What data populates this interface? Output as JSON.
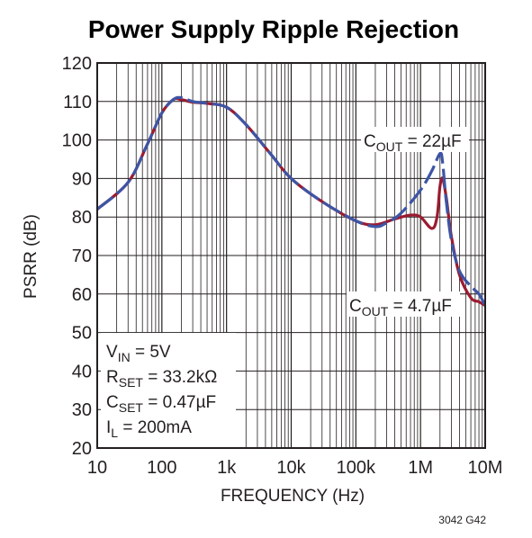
{
  "chart_data": {
    "type": "line",
    "title": "Power Supply Ripple Rejection",
    "xlabel": "FREQUENCY (Hz)",
    "ylabel": "PSRR (dB)",
    "xscale": "log",
    "xlim": [
      10,
      10000000
    ],
    "ylim": [
      20,
      120
    ],
    "grid": true,
    "x_ticks": [
      {
        "value": 10,
        "label": "10"
      },
      {
        "value": 100,
        "label": "100"
      },
      {
        "value": 1000,
        "label": "1k"
      },
      {
        "value": 10000,
        "label": "10k"
      },
      {
        "value": 100000,
        "label": "100k"
      },
      {
        "value": 1000000,
        "label": "1M"
      },
      {
        "value": 10000000,
        "label": "10M"
      }
    ],
    "y_ticks": [
      20,
      30,
      40,
      50,
      60,
      70,
      80,
      90,
      100,
      110,
      120
    ],
    "series": [
      {
        "name": "COUT = 4.7µF",
        "color": "#9b1b30",
        "style": "solid",
        "x": [
          10,
          30,
          60,
          100,
          150,
          200,
          300,
          500,
          1000,
          2000,
          5000,
          10000,
          30000,
          100000,
          200000,
          400000,
          700000,
          1000000,
          1500000,
          1800000,
          2000000,
          2200000,
          2500000,
          3000000,
          4000000,
          6000000,
          8000000,
          10000000
        ],
        "y": [
          82,
          89,
          99,
          107,
          110.5,
          110.5,
          109.8,
          109.5,
          108.5,
          104,
          96,
          90,
          84,
          79,
          78,
          79.5,
          80.5,
          80,
          77,
          80,
          88,
          90,
          85,
          75,
          65,
          59,
          58,
          57
        ]
      },
      {
        "name": "COUT = 22µF",
        "color": "#3d55a5",
        "style": "dashed",
        "x": [
          10,
          30,
          60,
          100,
          150,
          200,
          300,
          500,
          1000,
          2000,
          5000,
          10000,
          30000,
          100000,
          200000,
          300000,
          500000,
          1000000,
          1500000,
          2000000,
          2200000,
          2500000,
          3000000,
          4000000,
          6000000,
          8000000,
          10000000
        ],
        "y": [
          82,
          89,
          99,
          107,
          110.5,
          111,
          110,
          109.5,
          108.5,
          104,
          96,
          90,
          84,
          79,
          77.5,
          78.5,
          81,
          87,
          92,
          96.5,
          94,
          84,
          74,
          66,
          62,
          60,
          57
        ]
      }
    ],
    "annotations": [
      {
        "label": "COUT = 22µF",
        "x": 3000000,
        "y": 101
      },
      {
        "label": "COUT = 4.7µF",
        "x": 700000,
        "y": 58
      }
    ],
    "conditions": {
      "vin": "VIN = 5V",
      "rset": "RSET = 33.2kΩ",
      "cset": "CSET = 0.47µF",
      "il": "IL = 200mA"
    },
    "figure_id": "3042 G42"
  }
}
